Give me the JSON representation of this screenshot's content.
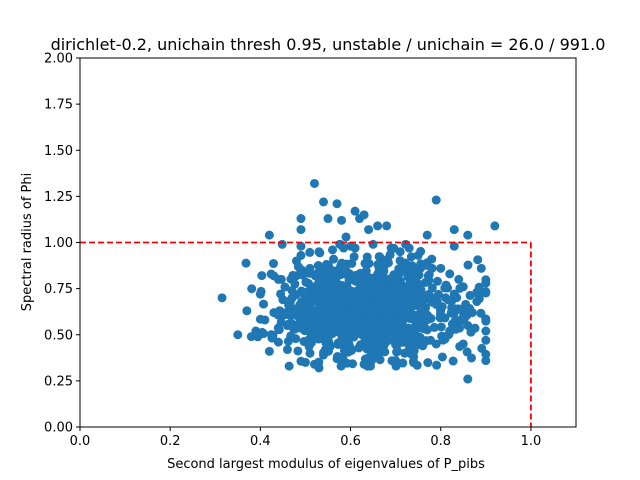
{
  "chart_data": {
    "type": "scatter",
    "title": "dirichlet-0.2, unichain thresh 0.95, unstable / unichain = 26.0 / 991.0",
    "xlabel": "Second largest modulus of eigenvalues of P_pibs",
    "ylabel": "Spectral radius of Phi",
    "xlim": [
      0.0,
      1.1
    ],
    "ylim": [
      0.0,
      2.0
    ],
    "xticks": [
      "0.0",
      "0.2",
      "0.4",
      "0.6",
      "0.8",
      "1.0"
    ],
    "yticks": [
      "0.00",
      "0.25",
      "0.50",
      "0.75",
      "1.00",
      "1.25",
      "1.50",
      "1.75",
      "2.00"
    ],
    "grid": false,
    "point_color": "#1f77b4",
    "threshold_color": "#ff0000",
    "threshold_box": {
      "x_max": 1.0,
      "y_max": 1.0
    },
    "cluster": {
      "n": 965,
      "x_mean": 0.645,
      "x_sd": 0.095,
      "x_min": 0.36,
      "x_max": 0.9,
      "y_mean": 0.63,
      "y_sd": 0.13,
      "y_min": 0.33,
      "y_max": 0.99
    },
    "points": [
      [
        0.315,
        0.7
      ],
      [
        0.35,
        0.5
      ],
      [
        0.37,
        0.63
      ],
      [
        0.4,
        0.72
      ],
      [
        0.42,
        0.41
      ],
      [
        0.42,
        1.04
      ],
      [
        0.44,
        0.8
      ],
      [
        0.46,
        0.42
      ],
      [
        0.48,
        0.9
      ],
      [
        0.49,
        1.13
      ],
      [
        0.49,
        1.07
      ],
      [
        0.49,
        0.98
      ],
      [
        0.5,
        0.35
      ],
      [
        0.52,
        1.32
      ],
      [
        0.52,
        0.34
      ],
      [
        0.53,
        0.32
      ],
      [
        0.54,
        1.22
      ],
      [
        0.55,
        1.13
      ],
      [
        0.57,
        1.21
      ],
      [
        0.58,
        1.12
      ],
      [
        0.59,
        1.03
      ],
      [
        0.61,
        1.17
      ],
      [
        0.62,
        1.13
      ],
      [
        0.63,
        1.15
      ],
      [
        0.64,
        1.07
      ],
      [
        0.66,
        1.09
      ],
      [
        0.68,
        1.09
      ],
      [
        0.7,
        0.36
      ],
      [
        0.72,
        0.4
      ],
      [
        0.74,
        0.38
      ],
      [
        0.77,
        1.04
      ],
      [
        0.79,
        1.23
      ],
      [
        0.83,
        1.07
      ],
      [
        0.83,
        0.98
      ],
      [
        0.85,
        0.45
      ],
      [
        0.86,
        0.26
      ],
      [
        0.86,
        1.04
      ],
      [
        0.88,
        0.73
      ],
      [
        0.89,
        0.86
      ],
      [
        0.9,
        0.47
      ],
      [
        0.9,
        0.52
      ],
      [
        0.9,
        0.58
      ],
      [
        0.92,
        1.09
      ],
      [
        0.9,
        0.78
      ],
      [
        0.88,
        0.68
      ],
      [
        0.87,
        0.62
      ],
      [
        0.86,
        0.55
      ],
      [
        0.84,
        0.8
      ],
      [
        0.38,
        0.49
      ],
      [
        0.39,
        0.52
      ],
      [
        0.41,
        0.58
      ],
      [
        0.43,
        0.62
      ],
      [
        0.44,
        0.46
      ],
      [
        0.45,
        0.69
      ],
      [
        0.46,
        0.55
      ],
      [
        0.47,
        0.74
      ],
      [
        0.48,
        0.82
      ],
      [
        0.49,
        0.93
      ],
      [
        0.51,
        0.4
      ],
      [
        0.51,
        0.86
      ],
      [
        0.53,
        0.95
      ],
      [
        0.54,
        0.39
      ],
      [
        0.56,
        0.96
      ],
      [
        0.57,
        0.37
      ],
      [
        0.6,
        0.98
      ],
      [
        0.61,
        0.97
      ],
      [
        0.63,
        0.34
      ],
      [
        0.65,
        0.99
      ],
      [
        0.67,
        0.41
      ],
      [
        0.69,
        0.97
      ],
      [
        0.71,
        0.95
      ],
      [
        0.73,
        0.42
      ],
      [
        0.73,
        0.97
      ],
      [
        0.75,
        0.93
      ],
      [
        0.76,
        0.44
      ],
      [
        0.77,
        0.89
      ],
      [
        0.78,
        0.91
      ],
      [
        0.79,
        0.45
      ],
      [
        0.8,
        0.86
      ],
      [
        0.81,
        0.49
      ],
      [
        0.82,
        0.83
      ],
      [
        0.82,
        0.52
      ],
      [
        0.83,
        0.72
      ],
      [
        0.84,
        0.64
      ],
      [
        0.85,
        0.76
      ]
    ]
  }
}
